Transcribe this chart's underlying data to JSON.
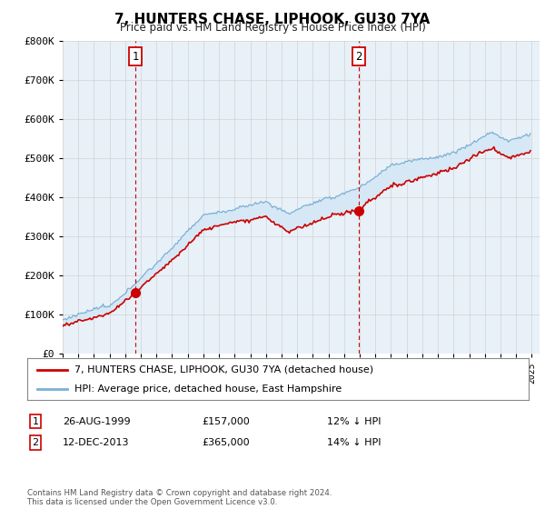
{
  "title": "7, HUNTERS CHASE, LIPHOOK, GU30 7YA",
  "subtitle": "Price paid vs. HM Land Registry's House Price Index (HPI)",
  "legend_line1": "7, HUNTERS CHASE, LIPHOOK, GU30 7YA (detached house)",
  "legend_line2": "HPI: Average price, detached house, East Hampshire",
  "footnote": "Contains HM Land Registry data © Crown copyright and database right 2024.\nThis data is licensed under the Open Government Licence v3.0.",
  "sale1_date": "26-AUG-1999",
  "sale1_price": "£157,000",
  "sale1_pct": "12% ↓ HPI",
  "sale1_year": 1999.65,
  "sale1_value": 157000,
  "sale2_date": "12-DEC-2013",
  "sale2_price": "£365,000",
  "sale2_pct": "14% ↓ HPI",
  "sale2_year": 2013.95,
  "sale2_value": 365000,
  "red_color": "#cc0000",
  "blue_color": "#7ab0d4",
  "fill_color": "#d6e8f5",
  "grid_color": "#cccccc",
  "background_color": "#e8f0f8",
  "ylim": [
    0,
    800000
  ],
  "yticks": [
    0,
    100000,
    200000,
    300000,
    400000,
    500000,
    600000,
    700000,
    800000
  ],
  "xlim_start": 1995,
  "xlim_end": 2025.5
}
